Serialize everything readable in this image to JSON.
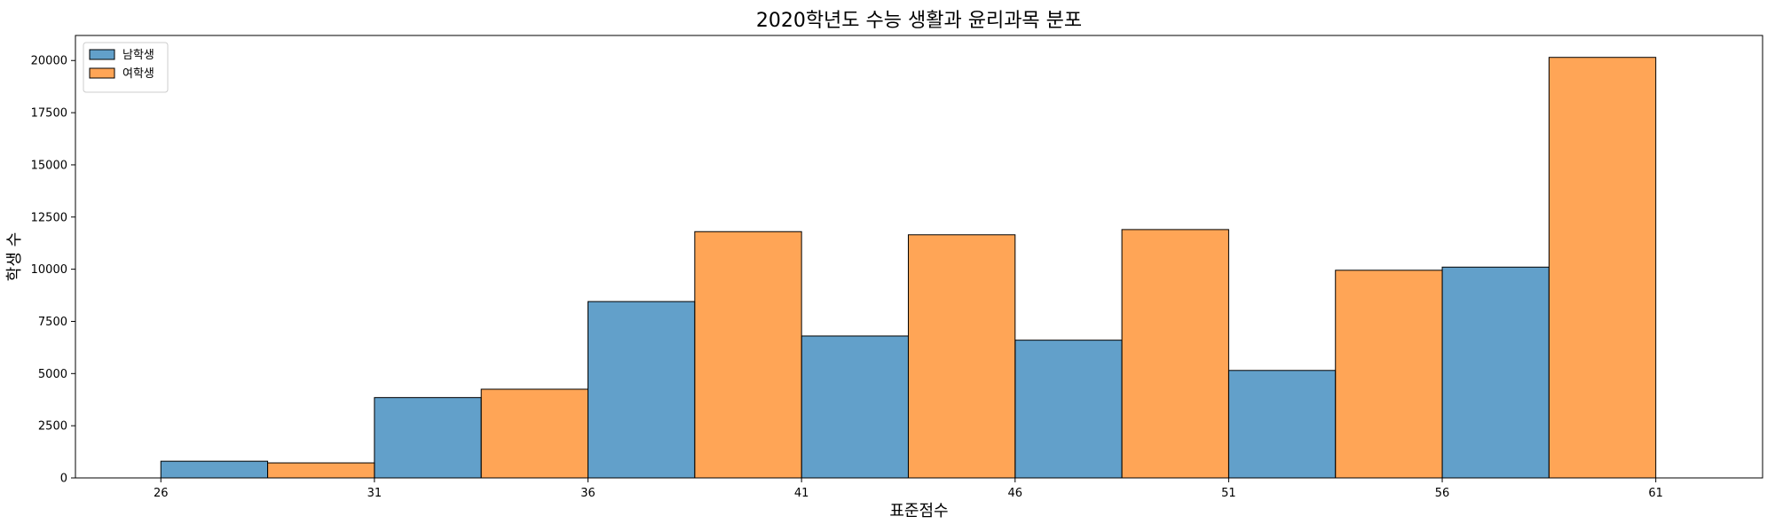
{
  "chart_data": {
    "type": "bar",
    "title": "2020학년도 수능 생활과 윤리과목 분포",
    "xlabel": "표준점수",
    "ylabel": "학생 수",
    "xlim": [
      24,
      63.5
    ],
    "ylim": [
      0,
      21200
    ],
    "xticks": [
      26,
      31,
      36,
      41,
      46,
      51,
      56,
      61
    ],
    "yticks": [
      0,
      2500,
      5000,
      7500,
      10000,
      12500,
      15000,
      17500,
      20000
    ],
    "bin_edges": [
      26,
      31,
      36,
      41,
      46,
      51,
      56,
      61
    ],
    "bin_width": 5,
    "grid": false,
    "legend_position": "top-left",
    "series": [
      {
        "name": "남학생",
        "color": "#1f77b4",
        "values": [
          800,
          3850,
          8450,
          6800,
          6600,
          5150,
          10100
        ]
      },
      {
        "name": "여학생",
        "color": "#ff7f0e",
        "values": [
          720,
          4250,
          11800,
          11650,
          11900,
          9950,
          20150
        ]
      }
    ]
  }
}
